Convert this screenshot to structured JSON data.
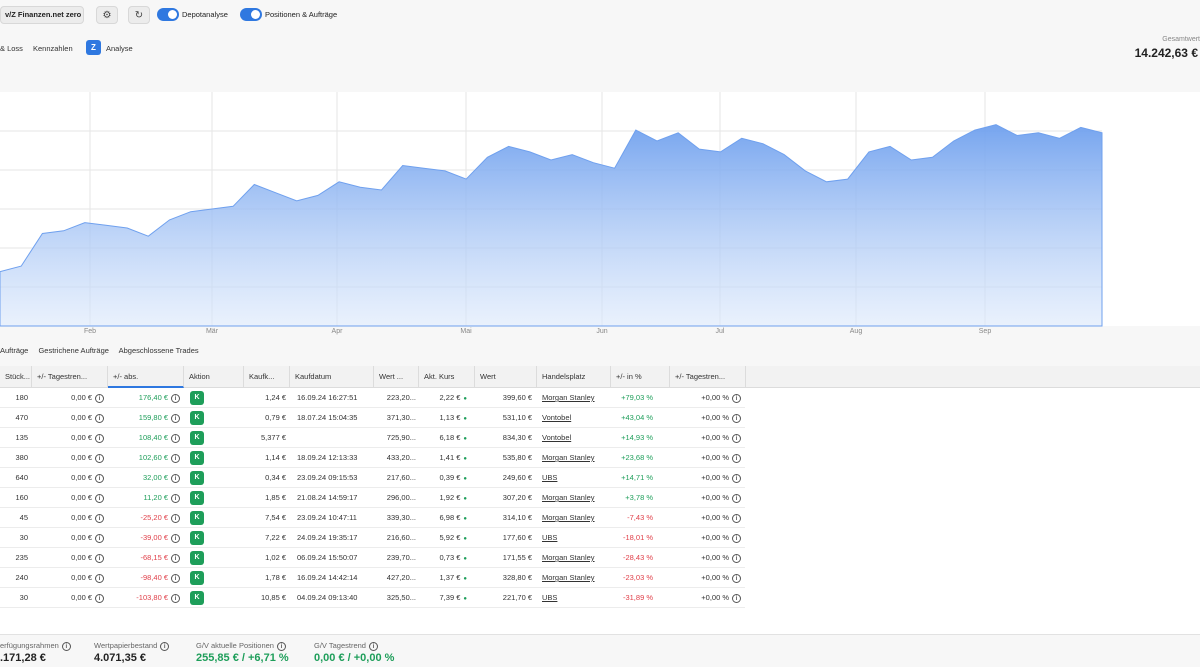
{
  "topbar": {
    "depot_name": "v/Z Finanzen.net zero",
    "settings_icon": "gear-icon",
    "refresh_icon": "refresh-icon",
    "toggles": [
      {
        "label": "Depotanalyse",
        "on": true
      },
      {
        "label": "Positionen & Aufträge",
        "on": true
      }
    ]
  },
  "subtabs": [
    {
      "label": "& Loss"
    },
    {
      "label": "Kennzahlen"
    },
    {
      "label": "Analyse",
      "icon": "analyse-icon",
      "icon_text": "Z"
    }
  ],
  "total": {
    "label": "Gesamtwert",
    "value": "14.242,63 €"
  },
  "chart_data": {
    "type": "area",
    "x_tick_labels": [
      "Feb",
      "Mär",
      "Apr",
      "Mai",
      "Jun",
      "Jul",
      "Aug",
      "Sep"
    ],
    "series": [
      {
        "values": [
          11000,
          11100,
          11700,
          11750,
          11900,
          11850,
          11800,
          11650,
          11950,
          12100,
          12150,
          12200,
          12600,
          12450,
          12300,
          12400,
          12650,
          12550,
          12500,
          12950,
          12900,
          12850,
          12700,
          13100,
          13300,
          13200,
          13050,
          13150,
          13000,
          12900,
          13600,
          13400,
          13550,
          13250,
          13200,
          13450,
          13350,
          13150,
          12850,
          12650,
          12700,
          13200,
          13300,
          13050,
          13100,
          13400,
          13600,
          13700,
          13500,
          13550,
          13450,
          13650,
          13550
        ]
      }
    ],
    "ylim": [
      10000,
      14300
    ],
    "color": "#6fa0ee",
    "grid": true
  },
  "order_tabs": [
    "Aufträge",
    "Gestrichene Aufträge",
    "Abgeschlossene Trades"
  ],
  "table": {
    "headers": [
      "Stück...",
      "+/- Tagestren...",
      "+/- abs.",
      "Aktion",
      "Kaufk...",
      "Kaufdatum",
      "Wert ...",
      "Akt. Kurs",
      "Wert",
      "Handelsplatz",
      "+/- in %",
      "+/- Tagestren..."
    ],
    "rows": [
      {
        "qty": "180",
        "trend": "0,00 €",
        "abs": "176,40 €",
        "sign": "pos",
        "price": "1,24 €",
        "date": "16.09.24 16:27:51",
        "cost": "223,20...",
        "cur": "2,22 €",
        "value": "399,60 €",
        "venue": "Morgan Stanley",
        "pct": "+79,03 %",
        "pct_trend": "+0,00 %"
      },
      {
        "qty": "470",
        "trend": "0,00 €",
        "abs": "159,80 €",
        "sign": "pos",
        "price": "0,79 €",
        "date": "18.07.24 15:04:35",
        "cost": "371,30...",
        "cur": "1,13 €",
        "value": "531,10 €",
        "venue": "Vontobel",
        "pct": "+43,04 %",
        "pct_trend": "+0,00 %"
      },
      {
        "qty": "135",
        "trend": "0,00 €",
        "abs": "108,40 €",
        "sign": "pos",
        "price": "5,377 €",
        "date": "",
        "cost": "725,90...",
        "cur": "6,18 €",
        "value": "834,30 €",
        "venue": "Vontobel",
        "pct": "+14,93 %",
        "pct_trend": "+0,00 %"
      },
      {
        "qty": "380",
        "trend": "0,00 €",
        "abs": "102,60 €",
        "sign": "pos",
        "price": "1,14 €",
        "date": "18.09.24 12:13:33",
        "cost": "433,20...",
        "cur": "1,41 €",
        "value": "535,80 €",
        "venue": "Morgan Stanley",
        "pct": "+23,68 %",
        "pct_trend": "+0,00 %"
      },
      {
        "qty": "640",
        "trend": "0,00 €",
        "abs": "32,00 €",
        "sign": "pos",
        "price": "0,34 €",
        "date": "23.09.24 09:15:53",
        "cost": "217,60...",
        "cur": "0,39 €",
        "value": "249,60 €",
        "venue": "UBS",
        "pct": "+14,71 %",
        "pct_trend": "+0,00 %"
      },
      {
        "qty": "160",
        "trend": "0,00 €",
        "abs": "11,20 €",
        "sign": "pos",
        "price": "1,85 €",
        "date": "21.08.24 14:59:17",
        "cost": "296,00...",
        "cur": "1,92 €",
        "value": "307,20 €",
        "venue": "Morgan Stanley",
        "pct": "+3,78 %",
        "pct_trend": "+0,00 %"
      },
      {
        "qty": "45",
        "trend": "0,00 €",
        "abs": "-25,20 €",
        "sign": "neg",
        "price": "7,54 €",
        "date": "23.09.24 10:47:11",
        "cost": "339,30...",
        "cur": "6,98 €",
        "value": "314,10 €",
        "venue": "Morgan Stanley",
        "pct": "-7,43 %",
        "pct_trend": "+0,00 %"
      },
      {
        "qty": "30",
        "trend": "0,00 €",
        "abs": "-39,00 €",
        "sign": "neg",
        "price": "7,22 €",
        "date": "24.09.24 19:35:17",
        "cost": "216,60...",
        "cur": "5,92 €",
        "value": "177,60 €",
        "venue": "UBS",
        "pct": "-18,01 %",
        "pct_trend": "+0,00 %"
      },
      {
        "qty": "235",
        "trend": "0,00 €",
        "abs": "-68,15 €",
        "sign": "neg",
        "price": "1,02 €",
        "date": "06.09.24 15:50:07",
        "cost": "239,70...",
        "cur": "0,73 €",
        "value": "171,55 €",
        "venue": "Morgan Stanley",
        "pct": "-28,43 %",
        "pct_trend": "+0,00 %"
      },
      {
        "qty": "240",
        "trend": "0,00 €",
        "abs": "-98,40 €",
        "sign": "neg",
        "price": "1,78 €",
        "date": "16.09.24 14:42:14",
        "cost": "427,20...",
        "cur": "1,37 €",
        "value": "328,80 €",
        "venue": "Morgan Stanley",
        "pct": "-23,03 %",
        "pct_trend": "+0,00 %"
      },
      {
        "qty": "30",
        "trend": "0,00 €",
        "abs": "-103,80 €",
        "sign": "neg",
        "price": "10,85 €",
        "date": "04.09.24 09:13:40",
        "cost": "325,50...",
        "cur": "7,39 €",
        "value": "221,70 €",
        "venue": "UBS",
        "pct": "-31,89 %",
        "pct_trend": "+0,00 %"
      }
    ],
    "action_label": "K"
  },
  "footer": {
    "items": [
      {
        "label": "erfügungsrahmen",
        "value": ".171,28 €",
        "green": false
      },
      {
        "label": "Wertpapierbestand",
        "value": "4.071,35 €",
        "green": false
      },
      {
        "label": "G/V aktuelle Positionen",
        "value": "255,85 € / +6,71 %",
        "green": true
      },
      {
        "label": "G/V Tagestrend",
        "value": "0,00 € / +0,00 %",
        "green": true
      }
    ]
  },
  "colors": {
    "accent": "#2f78e0",
    "positive": "#1e9e5a",
    "negative": "#e0404a"
  }
}
